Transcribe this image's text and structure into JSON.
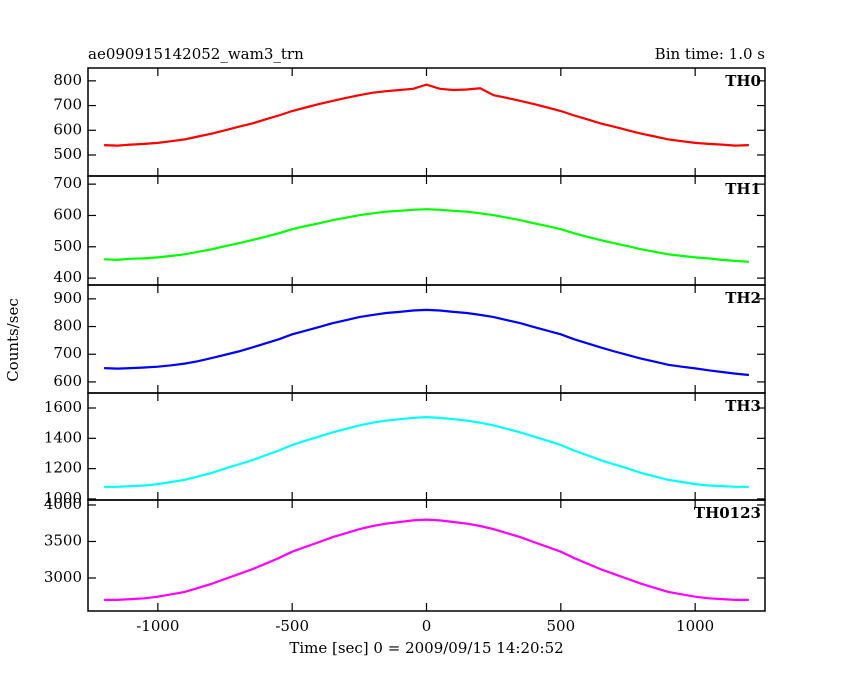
{
  "chart_data": [
    {
      "type": "line",
      "title": "ae090915142052_wam3_trn",
      "subtitle": "Bin time: 1.0 s",
      "x": [
        -1200,
        -1150,
        -1100,
        -1050,
        -1000,
        -950,
        -900,
        -850,
        -800,
        -750,
        -700,
        -650,
        -600,
        -550,
        -500,
        -450,
        -400,
        -350,
        -300,
        -250,
        -200,
        -150,
        -100,
        -50,
        0,
        50,
        100,
        150,
        200,
        250,
        300,
        350,
        400,
        450,
        500,
        550,
        600,
        650,
        700,
        750,
        800,
        850,
        900,
        950,
        1000,
        1050,
        1100,
        1150,
        1200
      ],
      "series": [
        {
          "name": "TH0",
          "color": "#ff0000",
          "values": [
            540,
            538,
            542,
            545,
            549,
            556,
            563,
            575,
            586,
            600,
            614,
            627,
            644,
            660,
            678,
            692,
            706,
            719,
            731,
            742,
            752,
            758,
            763,
            768,
            785,
            768,
            763,
            765,
            770,
            742,
            731,
            719,
            706,
            692,
            678,
            660,
            644,
            627,
            614,
            600,
            586,
            575,
            563,
            556,
            549,
            545,
            542,
            538,
            540
          ]
        }
      ],
      "xlim": [
        -1260,
        1260
      ],
      "xticks": [
        -1000,
        -500,
        0,
        500,
        1000
      ],
      "ylim": [
        415,
        852
      ],
      "yticks": [
        500,
        600,
        700,
        800
      ]
    },
    {
      "type": "line",
      "x": [
        -1200,
        -1150,
        -1100,
        -1050,
        -1000,
        -950,
        -900,
        -850,
        -800,
        -750,
        -700,
        -650,
        -600,
        -550,
        -500,
        -450,
        -400,
        -350,
        -300,
        -250,
        -200,
        -150,
        -100,
        -50,
        0,
        50,
        100,
        150,
        200,
        250,
        300,
        350,
        400,
        450,
        500,
        550,
        600,
        650,
        700,
        750,
        800,
        850,
        900,
        950,
        1000,
        1050,
        1100,
        1150,
        1200
      ],
      "series": [
        {
          "name": "TH1",
          "color": "#00ff00",
          "values": [
            460,
            458,
            462,
            463,
            466,
            471,
            476,
            484,
            492,
            502,
            511,
            521,
            532,
            543,
            556,
            566,
            575,
            585,
            593,
            601,
            607,
            612,
            615,
            618,
            620,
            618,
            615,
            612,
            607,
            601,
            593,
            585,
            575,
            566,
            556,
            543,
            532,
            521,
            511,
            502,
            492,
            484,
            476,
            471,
            466,
            463,
            458,
            455,
            452
          ]
        }
      ],
      "xlim": [
        -1260,
        1260
      ],
      "xticks": [
        -1000,
        -500,
        0,
        500,
        1000
      ],
      "ylim": [
        378,
        726
      ],
      "yticks": [
        400,
        500,
        600,
        700
      ]
    },
    {
      "type": "line",
      "ylabel": "Counts/sec",
      "x": [
        -1200,
        -1150,
        -1100,
        -1050,
        -1000,
        -950,
        -900,
        -850,
        -800,
        -750,
        -700,
        -650,
        -600,
        -550,
        -500,
        -450,
        -400,
        -350,
        -300,
        -250,
        -200,
        -150,
        -100,
        -50,
        0,
        50,
        100,
        150,
        200,
        250,
        300,
        350,
        400,
        450,
        500,
        550,
        600,
        650,
        700,
        750,
        800,
        850,
        900,
        950,
        1000,
        1050,
        1100,
        1150,
        1200
      ],
      "series": [
        {
          "name": "TH2",
          "color": "#0000ff",
          "values": [
            650,
            648,
            650,
            652,
            655,
            660,
            666,
            675,
            686,
            698,
            710,
            724,
            739,
            754,
            772,
            785,
            798,
            812,
            823,
            834,
            842,
            849,
            853,
            858,
            860,
            858,
            853,
            849,
            842,
            834,
            823,
            812,
            798,
            785,
            772,
            754,
            739,
            724,
            710,
            697,
            684,
            673,
            662,
            655,
            649,
            642,
            636,
            630,
            625
          ]
        }
      ],
      "xlim": [
        -1260,
        1260
      ],
      "xticks": [
        -1000,
        -500,
        0,
        500,
        1000
      ],
      "ylim": [
        560,
        950
      ],
      "yticks": [
        600,
        700,
        800,
        900
      ]
    },
    {
      "type": "line",
      "x": [
        -1200,
        -1150,
        -1100,
        -1050,
        -1000,
        -950,
        -900,
        -850,
        -800,
        -750,
        -700,
        -650,
        -600,
        -550,
        -500,
        -450,
        -400,
        -350,
        -300,
        -250,
        -200,
        -150,
        -100,
        -50,
        0,
        50,
        100,
        150,
        200,
        250,
        300,
        350,
        400,
        450,
        500,
        550,
        600,
        650,
        700,
        750,
        800,
        850,
        900,
        950,
        1000,
        1050,
        1100,
        1150,
        1200
      ],
      "series": [
        {
          "name": "TH3",
          "color": "#00ffff",
          "values": [
            1080,
            1080,
            1085,
            1089,
            1098,
            1112,
            1126,
            1149,
            1172,
            1200,
            1227,
            1255,
            1287,
            1319,
            1356,
            1384,
            1411,
            1439,
            1462,
            1485,
            1503,
            1517,
            1526,
            1535,
            1540,
            1535,
            1526,
            1517,
            1503,
            1485,
            1462,
            1439,
            1411,
            1384,
            1356,
            1319,
            1287,
            1255,
            1227,
            1200,
            1172,
            1149,
            1126,
            1112,
            1098,
            1089,
            1085,
            1080,
            1080
          ]
        }
      ],
      "xlim": [
        -1260,
        1260
      ],
      "xticks": [
        -1000,
        -500,
        0,
        500,
        1000
      ],
      "ylim": [
        993,
        1699
      ],
      "yticks": [
        1000,
        1200,
        1400,
        1600
      ]
    },
    {
      "type": "line",
      "xlabel": "Time [sec] 0 = 2009/09/15 14:20:52",
      "x": [
        -1200,
        -1150,
        -1100,
        -1050,
        -1000,
        -950,
        -900,
        -850,
        -800,
        -750,
        -700,
        -650,
        -600,
        -550,
        -500,
        -450,
        -400,
        -350,
        -300,
        -250,
        -200,
        -150,
        -100,
        -50,
        0,
        50,
        100,
        150,
        200,
        250,
        300,
        350,
        400,
        450,
        500,
        550,
        600,
        650,
        700,
        750,
        800,
        850,
        900,
        950,
        1000,
        1050,
        1100,
        1150,
        1200
      ],
      "series": [
        {
          "name": "TH0123",
          "color": "#ff00ff",
          "values": [
            2700,
            2700,
            2711,
            2722,
            2744,
            2777,
            2810,
            2865,
            2920,
            2986,
            3052,
            3118,
            3195,
            3272,
            3360,
            3426,
            3492,
            3558,
            3613,
            3668,
            3712,
            3745,
            3767,
            3789,
            3800,
            3789,
            3767,
            3745,
            3712,
            3668,
            3613,
            3558,
            3492,
            3426,
            3360,
            3272,
            3195,
            3118,
            3052,
            2986,
            2920,
            2865,
            2810,
            2777,
            2744,
            2722,
            2711,
            2700,
            2700
          ]
        }
      ],
      "xlim": [
        -1260,
        1260
      ],
      "xticks": [
        -1000,
        -500,
        0,
        500,
        1000
      ],
      "ylim": [
        2548,
        4068
      ],
      "yticks": [
        3000,
        3500,
        4000
      ]
    }
  ]
}
